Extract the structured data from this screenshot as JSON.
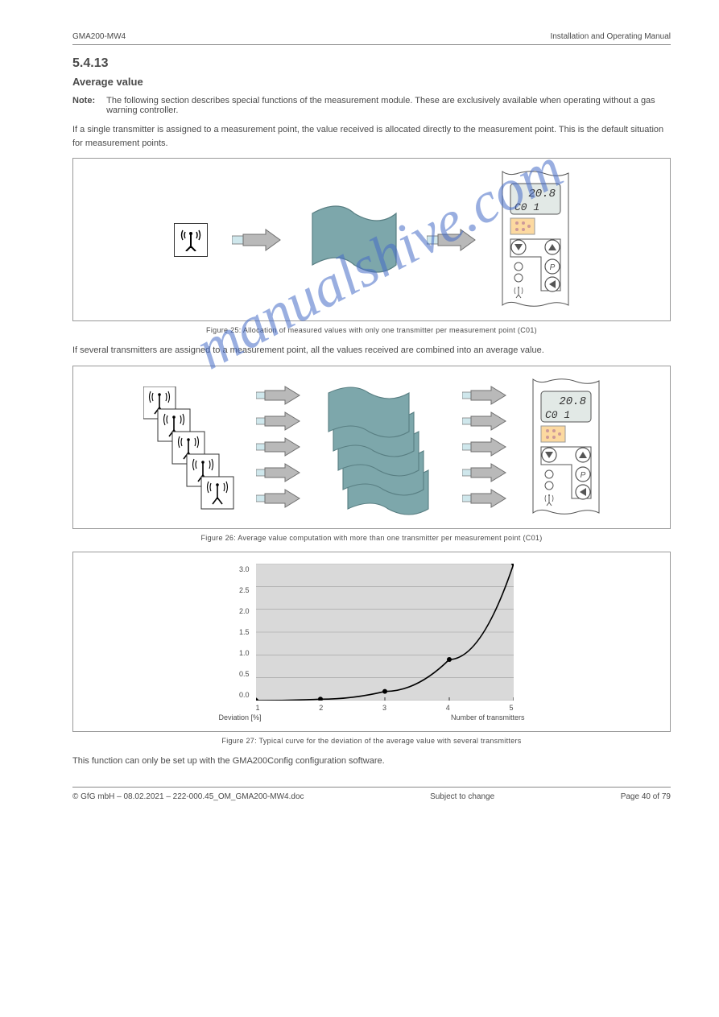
{
  "header": {
    "product": "GMA200-MW4",
    "tagline": "Installation and Operating Manual"
  },
  "section": {
    "number": "5.4.13",
    "title": "Average value"
  },
  "note": {
    "label": "Note:",
    "text": "The following section describes special functions of the measurement module. These are exclusively available when operating without a gas warning controller."
  },
  "paragraphs": {
    "p1": "If a single transmitter is assigned to a measurement point, the value received is allocated directly to the measurement point. This is the default situation for measurement points.",
    "p2": "If several transmitters are assigned to a measurement point, all the values received are combined into an average value.",
    "p3": "This function can only be set up with the GMA200Config configuration software."
  },
  "figures": {
    "fig1_caption": "Figure 25: Allocation of measured values with only one transmitter per measurement point (C01)",
    "fig2_caption": "Figure 26: Average value computation with more than one transmitter per measurement point (C01)",
    "fig3_caption": "Figure 27: Typical curve for the deviation of the average value with several transmitters"
  },
  "device": {
    "reading": "20.8",
    "channel": "C0 1"
  },
  "colors": {
    "flag": "#7da7ab",
    "flag_stroke": "#587e82",
    "arrow_fill": "#b9b9b9",
    "arrow_stroke": "#6f6f6f",
    "arrow_tail": "#cfe7ec",
    "device_stroke": "#555555",
    "chart_bg": "#d9d9d9",
    "chart_line": "#000000",
    "chart_grid": "#9e9e9e"
  },
  "chart": {
    "ylabel": "Deviation [%]",
    "xlabel": "Number of transmitters",
    "y_ticks": [
      "0.0",
      "0.5",
      "1.0",
      "1.5",
      "2.0",
      "2.5",
      "3.0"
    ],
    "x_ticks": [
      "1",
      "2",
      "3",
      "4",
      "5"
    ],
    "points": [
      {
        "n": 1,
        "d": 0.0
      },
      {
        "n": 2,
        "d": 0.03
      },
      {
        "n": 3,
        "d": 0.2
      },
      {
        "n": 4,
        "d": 0.9
      },
      {
        "n": 5,
        "d": 3.0
      }
    ]
  },
  "footer": {
    "copyright": "© GfG mbH – 08.02.2021 – 222-000.45_OM_GMA200-MW4.doc",
    "status": "Subject to change",
    "page": "Page 40 of 79"
  }
}
